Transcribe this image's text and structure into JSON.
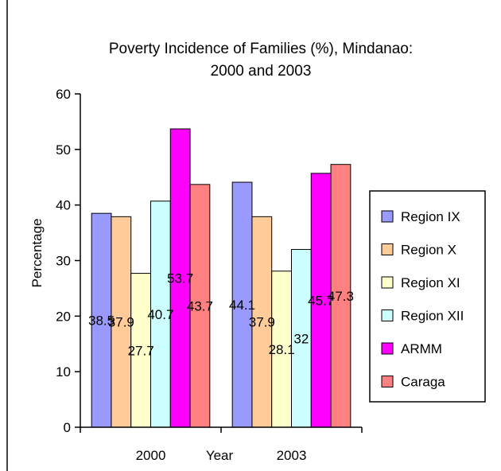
{
  "chart_data": {
    "type": "bar",
    "title": [
      "Poverty Incidence of Families (%), Mindanao:",
      "2000 and 2003"
    ],
    "xlabel": "Year",
    "ylabel": "Percentage",
    "categories": [
      "2000",
      "2003"
    ],
    "ylim": [
      0,
      60
    ],
    "yticks": [
      "0",
      "10",
      "20",
      "30",
      "40",
      "50",
      "60"
    ],
    "grid": false,
    "legend": "right",
    "series": [
      {
        "name": "Region IX",
        "values": [
          38.5,
          44.1
        ],
        "labels": [
          "38.5",
          "44.1"
        ],
        "color": "#9999FF"
      },
      {
        "name": "Region X",
        "values": [
          37.9,
          37.9
        ],
        "labels": [
          "37.9",
          "37.9"
        ],
        "color": "#FFCC99"
      },
      {
        "name": "Region XI",
        "values": [
          27.7,
          28.1
        ],
        "labels": [
          "27.7",
          "28.1"
        ],
        "color": "#FFFFCC"
      },
      {
        "name": "Region XII",
        "values": [
          40.7,
          32
        ],
        "labels": [
          "40.7",
          "32"
        ],
        "color": "#CCFFFF"
      },
      {
        "name": "ARMM",
        "values": [
          53.7,
          45.7
        ],
        "labels": [
          "53.7",
          "45.7"
        ],
        "color": "#FF00FF"
      },
      {
        "name": "Caraga",
        "values": [
          43.7,
          47.3
        ],
        "labels": [
          "43.7",
          "47.3"
        ],
        "color": "#FF8080"
      }
    ]
  }
}
